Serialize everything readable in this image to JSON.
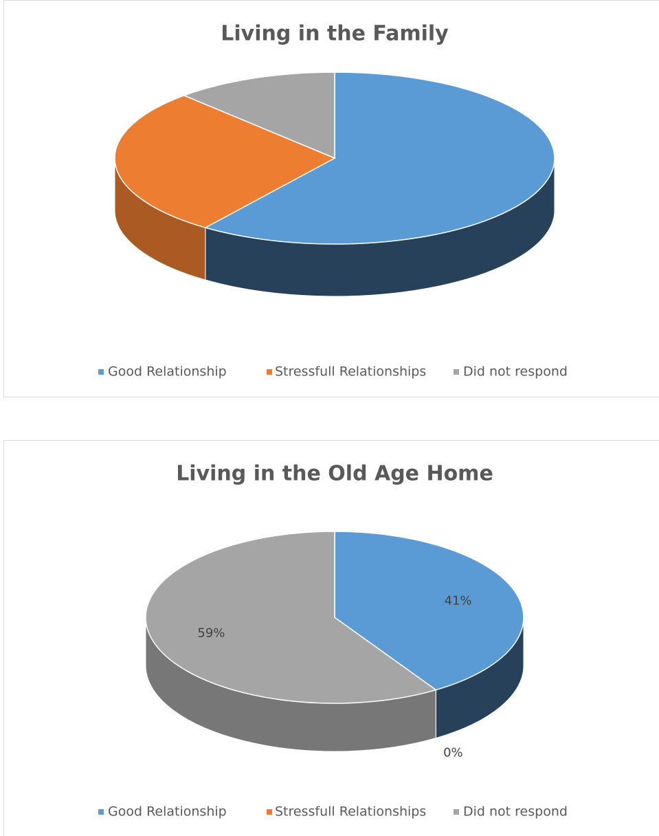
{
  "chart_data": [
    {
      "type": "pie",
      "title": "Living in the Family",
      "categories": [
        "Good Relationship",
        "Stressfull Relationships",
        "Did not respond"
      ],
      "values": [
        60,
        28,
        12
      ],
      "colors": [
        "#5b9bd5",
        "#ed7d31",
        "#a5a5a5"
      ],
      "legend": "bottom"
    },
    {
      "type": "pie",
      "title": "Living in the Old Age Home",
      "categories": [
        "Good Relationship",
        "Stressfull Relationships",
        "Did not respond"
      ],
      "values": [
        41,
        0,
        59
      ],
      "value_labels": [
        "41%",
        "0%",
        "59%"
      ],
      "colors": [
        "#5b9bd5",
        "#ed7d31",
        "#a5a5a5"
      ],
      "legend": "bottom"
    }
  ]
}
